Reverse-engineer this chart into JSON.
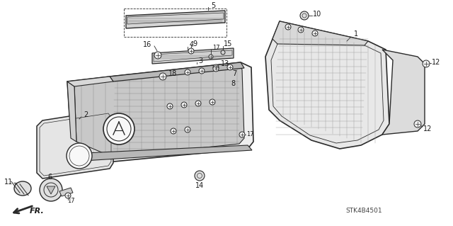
{
  "diagram_code": "STK4B4501",
  "bg_color": "#ffffff",
  "line_color": "#2a2a2a",
  "text_color": "#1a1a1a",
  "fig_width": 6.4,
  "fig_height": 3.19,
  "dpi": 100,
  "label_fontsize": 7.0,
  "small_fontsize": 6.0
}
